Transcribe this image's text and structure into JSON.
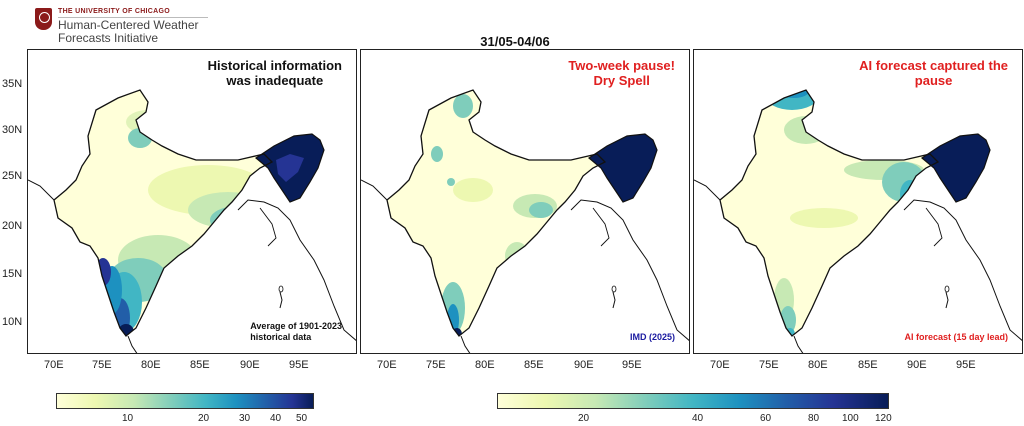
{
  "branding": {
    "university": "THE UNIVERSITY OF CHICAGO",
    "org_line1": "Human-Centered Weather",
    "org_line2": "Forecasts Initiative"
  },
  "figure_title": "31/05-04/06",
  "panels": [
    {
      "title_line1": "Historical information",
      "title_line2": "was inadequate",
      "title_color": "#111111",
      "note_line1": "Average of 1901-2023",
      "note_line2": "historical data",
      "note_color": "#111111"
    },
    {
      "title_line1": "Two-week pause!",
      "title_line2": "Dry Spell",
      "title_color": "#e02020",
      "note_line1": "IMD (2025)",
      "note_line2": "",
      "note_color": "#1a1aa0"
    },
    {
      "title_line1": "AI forecast captured the",
      "title_line2": "pause",
      "title_color": "#e02020",
      "note_line1": "AI forecast (15 day lead)",
      "note_line2": "",
      "note_color": "#e02020"
    }
  ],
  "axes": {
    "lat_ticks": [
      "35N",
      "30N",
      "25N",
      "20N",
      "15N",
      "10N"
    ],
    "lon_ticks": [
      "70E",
      "75E",
      "80E",
      "85E",
      "90E",
      "95E"
    ]
  },
  "colorbars": [
    {
      "ticks": [
        "10",
        "20",
        "30",
        "40",
        "50"
      ]
    },
    {
      "ticks": [
        "20",
        "40",
        "60",
        "80",
        "100",
        "120"
      ]
    }
  ],
  "colors": {
    "scale_low": "#ffffd9",
    "scale_mid": "#41b6c4",
    "scale_high": "#081d58"
  }
}
